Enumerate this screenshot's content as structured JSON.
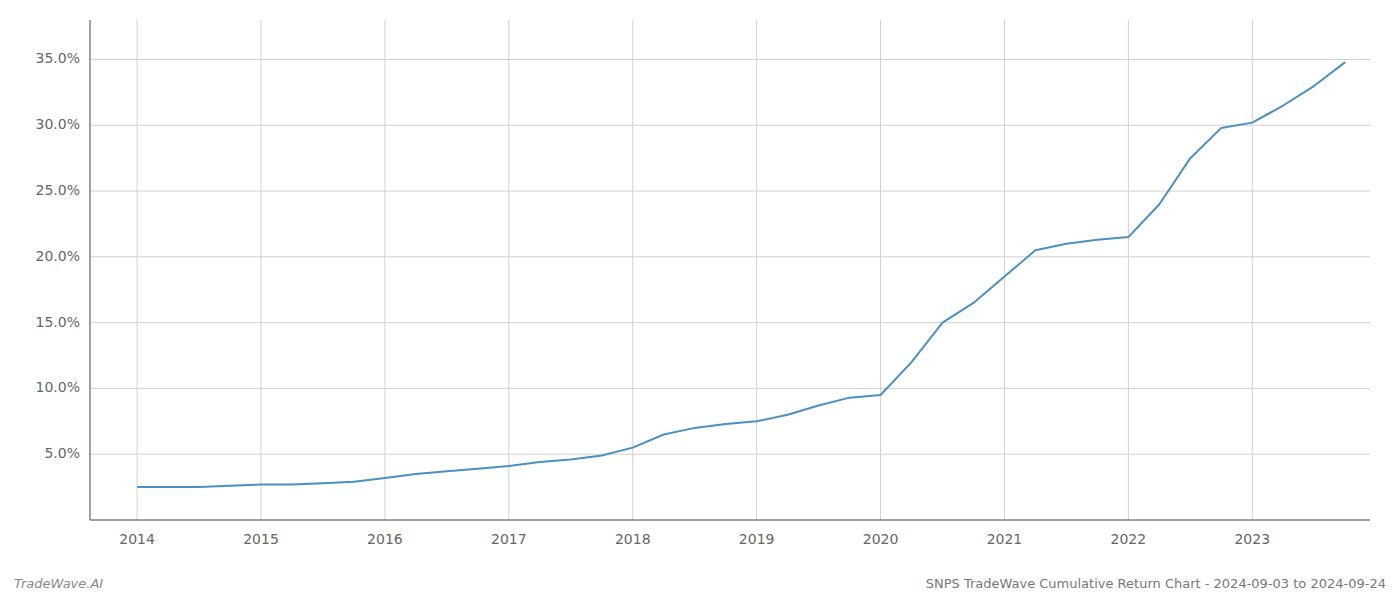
{
  "chart_data": {
    "type": "line",
    "title": "SNPS TradeWave Cumulative Return Chart - 2024-09-03 to 2024-09-24",
    "annotations": [
      "TradeWave.AI"
    ],
    "color": "#4a90c4",
    "grid": true,
    "x": [
      2014.0,
      2014.25,
      2014.5,
      2014.75,
      2015.0,
      2015.25,
      2015.5,
      2015.75,
      2016.0,
      2016.25,
      2016.5,
      2016.75,
      2017.0,
      2017.25,
      2017.5,
      2017.75,
      2018.0,
      2018.25,
      2018.5,
      2018.75,
      2019.0,
      2019.25,
      2019.5,
      2019.75,
      2020.0,
      2020.25,
      2020.5,
      2020.75,
      2021.0,
      2021.25,
      2021.5,
      2021.75,
      2022.0,
      2022.25,
      2022.5,
      2022.75,
      2023.0,
      2023.25,
      2023.5,
      2023.75
    ],
    "values": [
      2.5,
      2.5,
      2.5,
      2.6,
      2.7,
      2.7,
      2.8,
      2.9,
      3.2,
      3.5,
      3.7,
      3.9,
      4.1,
      4.4,
      4.6,
      4.9,
      5.5,
      6.5,
      7.0,
      7.3,
      7.5,
      8.0,
      8.7,
      9.3,
      9.5,
      12.0,
      15.0,
      16.5,
      18.5,
      20.5,
      21.0,
      21.3,
      21.5,
      24.0,
      27.5,
      29.8,
      30.2,
      31.5,
      33.0,
      34.8
    ],
    "xlim": [
      2013.62,
      2023.95
    ],
    "xticks": [
      2014,
      2015,
      2016,
      2017,
      2018,
      2019,
      2020,
      2021,
      2022,
      2023
    ],
    "ylim": [
      0,
      38
    ],
    "yticks": [
      {
        "value": 5.0,
        "label": "5.0%"
      },
      {
        "value": 10.0,
        "label": "10.0%"
      },
      {
        "value": 15.0,
        "label": "15.0%"
      },
      {
        "value": 20.0,
        "label": "20.0%"
      },
      {
        "value": 25.0,
        "label": "25.0%"
      },
      {
        "value": 30.0,
        "label": "30.0%"
      },
      {
        "value": 35.0,
        "label": "35.0%"
      }
    ]
  }
}
